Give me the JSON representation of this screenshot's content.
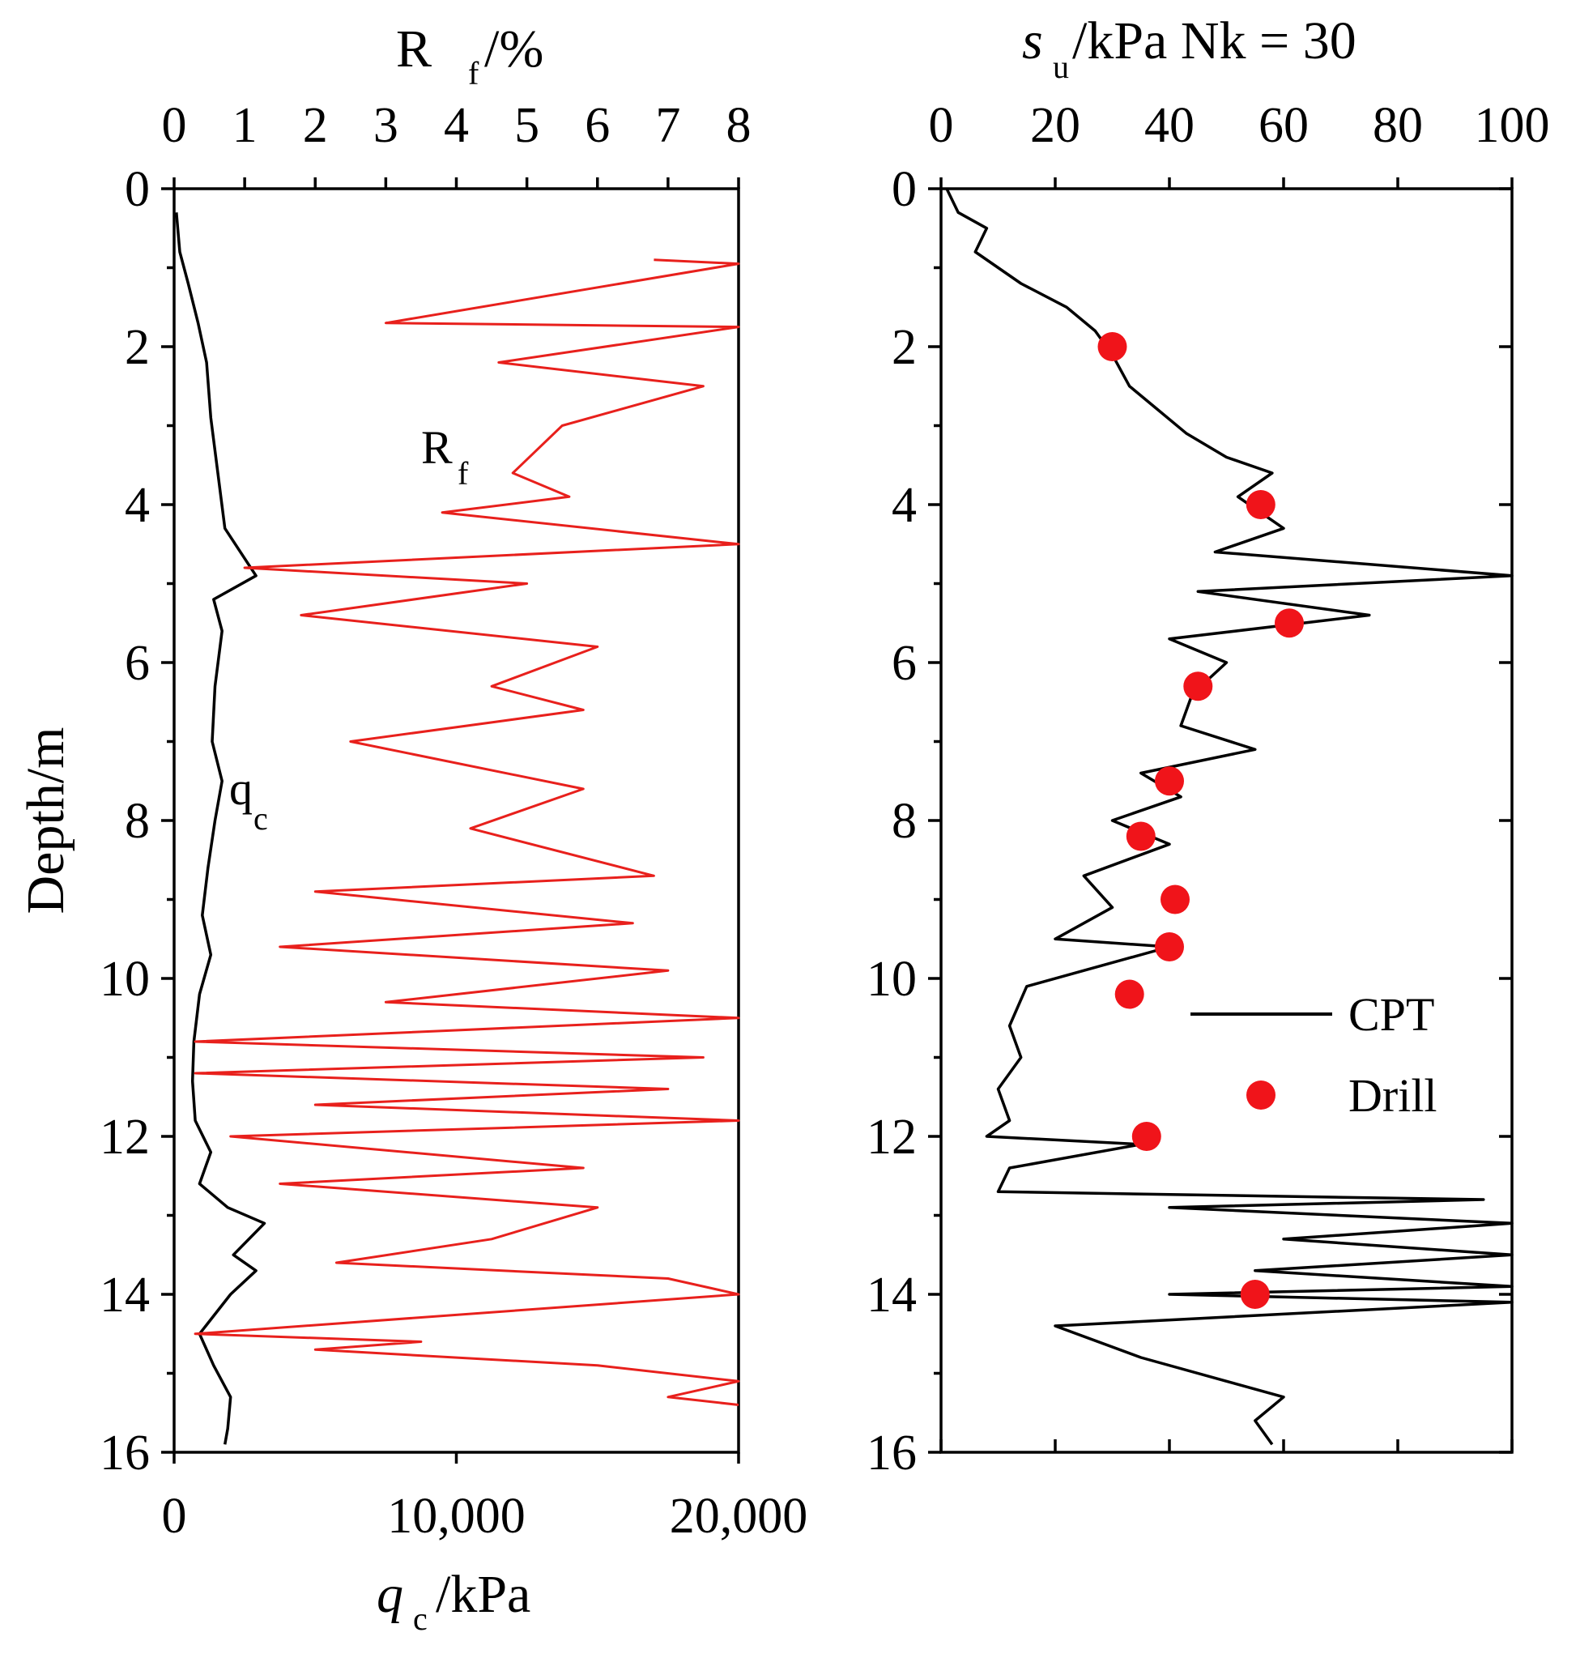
{
  "chart_data": [
    {
      "type": "line",
      "panel": "left",
      "ylabel": "Depth/m",
      "ylim": [
        16,
        0
      ],
      "yticks": [
        "0",
        "2",
        "4",
        "6",
        "8",
        "10",
        "12",
        "14",
        "16"
      ],
      "top_axis": {
        "label_main": "R",
        "label_sub": "f",
        "label_rest": "/%",
        "range": [
          0,
          8
        ],
        "ticks": [
          "0",
          "1",
          "2",
          "3",
          "4",
          "5",
          "6",
          "7",
          "8"
        ]
      },
      "bottom_axis": {
        "label_main": "q",
        "label_sub": "c",
        "label_rest": "/kPa",
        "range": [
          0,
          20000
        ],
        "ticks": [
          "0",
          "10,000",
          "20,000"
        ]
      },
      "annotations": {
        "rf_main": "R",
        "rf_sub": "f",
        "qc_main": "q",
        "qc_sub": "c"
      },
      "series": [
        {
          "name": "qc",
          "axis": "bottom",
          "color": "#000000",
          "points": [
            [
              80,
              0.3
            ],
            [
              200,
              0.8
            ],
            [
              500,
              1.2
            ],
            [
              850,
              1.7
            ],
            [
              1150,
              2.2
            ],
            [
              1300,
              2.9
            ],
            [
              1550,
              3.6
            ],
            [
              1800,
              4.3
            ],
            [
              2900,
              4.9
            ],
            [
              1400,
              5.2
            ],
            [
              1700,
              5.6
            ],
            [
              1450,
              6.3
            ],
            [
              1350,
              7.0
            ],
            [
              1700,
              7.5
            ],
            [
              1450,
              8.0
            ],
            [
              1200,
              8.6
            ],
            [
              1000,
              9.2
            ],
            [
              1300,
              9.7
            ],
            [
              900,
              10.2
            ],
            [
              700,
              10.8
            ],
            [
              650,
              11.3
            ],
            [
              750,
              11.8
            ],
            [
              1300,
              12.2
            ],
            [
              900,
              12.6
            ],
            [
              1900,
              12.9
            ],
            [
              3200,
              13.1
            ],
            [
              2100,
              13.5
            ],
            [
              2900,
              13.7
            ],
            [
              2000,
              14.0
            ],
            [
              900,
              14.5
            ],
            [
              1400,
              14.9
            ],
            [
              2000,
              15.3
            ],
            [
              1900,
              15.7
            ],
            [
              1800,
              15.9
            ]
          ]
        },
        {
          "name": "Rf",
          "axis": "top",
          "color": "#e8201c",
          "points": [
            [
              6.8,
              0.9
            ],
            [
              8.0,
              0.95
            ],
            [
              3.0,
              1.7
            ],
            [
              8.0,
              1.75
            ],
            [
              4.6,
              2.2
            ],
            [
              7.5,
              2.5
            ],
            [
              5.5,
              3.0
            ],
            [
              4.8,
              3.6
            ],
            [
              5.6,
              3.9
            ],
            [
              3.8,
              4.1
            ],
            [
              8.0,
              4.5
            ],
            [
              1.0,
              4.8
            ],
            [
              5.0,
              5.0
            ],
            [
              1.8,
              5.4
            ],
            [
              6.0,
              5.8
            ],
            [
              4.5,
              6.3
            ],
            [
              5.8,
              6.6
            ],
            [
              2.5,
              7.0
            ],
            [
              5.8,
              7.6
            ],
            [
              4.2,
              8.1
            ],
            [
              6.8,
              8.7
            ],
            [
              2.0,
              8.9
            ],
            [
              6.5,
              9.3
            ],
            [
              1.5,
              9.6
            ],
            [
              7.0,
              9.9
            ],
            [
              3.0,
              10.3
            ],
            [
              8.0,
              10.5
            ],
            [
              0.3,
              10.8
            ],
            [
              7.5,
              11.0
            ],
            [
              0.3,
              11.2
            ],
            [
              7.0,
              11.4
            ],
            [
              2.0,
              11.6
            ],
            [
              8.0,
              11.8
            ],
            [
              0.8,
              12.0
            ],
            [
              5.8,
              12.4
            ],
            [
              1.5,
              12.6
            ],
            [
              6.0,
              12.9
            ],
            [
              4.5,
              13.3
            ],
            [
              2.3,
              13.6
            ],
            [
              7.0,
              13.8
            ],
            [
              8.0,
              14.0
            ],
            [
              0.3,
              14.5
            ],
            [
              3.5,
              14.6
            ],
            [
              2.0,
              14.7
            ],
            [
              6.0,
              14.9
            ],
            [
              8.0,
              15.1
            ],
            [
              7.0,
              15.3
            ],
            [
              8.0,
              15.4
            ]
          ]
        }
      ]
    },
    {
      "type": "line+scatter",
      "panel": "right",
      "ylim": [
        16,
        0
      ],
      "yticks": [
        "0",
        "2",
        "4",
        "6",
        "8",
        "10",
        "12",
        "14",
        "16"
      ],
      "top_axis": {
        "label_main": "s",
        "label_sub": "u",
        "label_rest": "/kPa Nk = 30",
        "range": [
          0,
          100
        ],
        "ticks": [
          "0",
          "20",
          "40",
          "60",
          "80",
          "100"
        ]
      },
      "legend": {
        "position": "right-middle",
        "items": [
          "CPT",
          "Drill"
        ]
      },
      "series": [
        {
          "name": "CPT",
          "type": "line",
          "color": "#000000",
          "points": [
            [
              1,
              0.0
            ],
            [
              3,
              0.3
            ],
            [
              8,
              0.5
            ],
            [
              6,
              0.8
            ],
            [
              14,
              1.2
            ],
            [
              22,
              1.5
            ],
            [
              27,
              1.8
            ],
            [
              30,
              2.1
            ],
            [
              33,
              2.5
            ],
            [
              38,
              2.8
            ],
            [
              43,
              3.1
            ],
            [
              50,
              3.4
            ],
            [
              58,
              3.6
            ],
            [
              52,
              3.9
            ],
            [
              60,
              4.3
            ],
            [
              48,
              4.6
            ],
            [
              100,
              4.9
            ],
            [
              45,
              5.1
            ],
            [
              75,
              5.4
            ],
            [
              40,
              5.7
            ],
            [
              50,
              6.0
            ],
            [
              44,
              6.4
            ],
            [
              42,
              6.8
            ],
            [
              55,
              7.1
            ],
            [
              35,
              7.4
            ],
            [
              42,
              7.7
            ],
            [
              30,
              8.0
            ],
            [
              40,
              8.3
            ],
            [
              25,
              8.7
            ],
            [
              30,
              9.1
            ],
            [
              20,
              9.5
            ],
            [
              40,
              9.6
            ],
            [
              15,
              10.1
            ],
            [
              12,
              10.6
            ],
            [
              14,
              11.0
            ],
            [
              10,
              11.4
            ],
            [
              12,
              11.8
            ],
            [
              8,
              12.0
            ],
            [
              35,
              12.1
            ],
            [
              12,
              12.4
            ],
            [
              10,
              12.7
            ],
            [
              95,
              12.8
            ],
            [
              40,
              12.9
            ],
            [
              100,
              13.1
            ],
            [
              60,
              13.3
            ],
            [
              100,
              13.5
            ],
            [
              55,
              13.7
            ],
            [
              100,
              13.9
            ],
            [
              40,
              14.0
            ],
            [
              100,
              14.1
            ],
            [
              20,
              14.4
            ],
            [
              35,
              14.8
            ],
            [
              50,
              15.1
            ],
            [
              60,
              15.3
            ],
            [
              55,
              15.6
            ],
            [
              58,
              15.9
            ]
          ]
        },
        {
          "name": "Drill",
          "type": "scatter",
          "color": "#f0141a",
          "points": [
            [
              30,
              2.0
            ],
            [
              56,
              4.0
            ],
            [
              61,
              5.5
            ],
            [
              45,
              6.3
            ],
            [
              40,
              7.5
            ],
            [
              35,
              8.2
            ],
            [
              41,
              9.0
            ],
            [
              40,
              9.6
            ],
            [
              33,
              10.2
            ],
            [
              36,
              12.0
            ],
            [
              55,
              14.0
            ]
          ]
        }
      ]
    }
  ]
}
